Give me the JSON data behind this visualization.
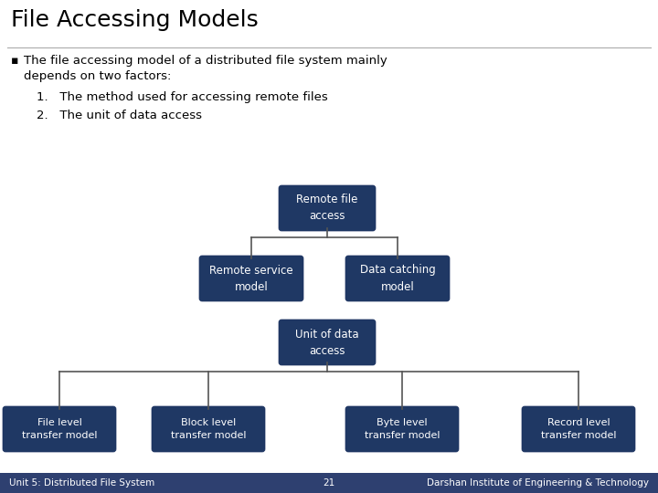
{
  "title": "File Accessing Models",
  "bg_color": "#ffffff",
  "box_color": "#1F3864",
  "text_color_white": "#ffffff",
  "text_color_black": "#000000",
  "footer_bg": "#2E4070",
  "bullet_text_line1": "The file accessing model of a distributed file system mainly",
  "bullet_text_line2": "depends on two factors:",
  "item1": "1.   The method used for accessing remote files",
  "item2": "2.   The unit of data access",
  "box_labels": {
    "remote_file": "Remote file\naccess",
    "remote_service": "Remote service\nmodel",
    "data_catching": "Data catching\nmodel",
    "unit_data": "Unit of data\naccess",
    "file_level": "File level\ntransfer model",
    "block_level": "Block level\ntransfer model",
    "byte_level": "Byte level\ntransfer model",
    "record_level": "Record level\ntransfer model"
  },
  "footer_left": "Unit 5: Distributed File System",
  "footer_center": "21",
  "footer_right": "Darshan Institute of Engineering & Technology",
  "line_color": "#555555"
}
